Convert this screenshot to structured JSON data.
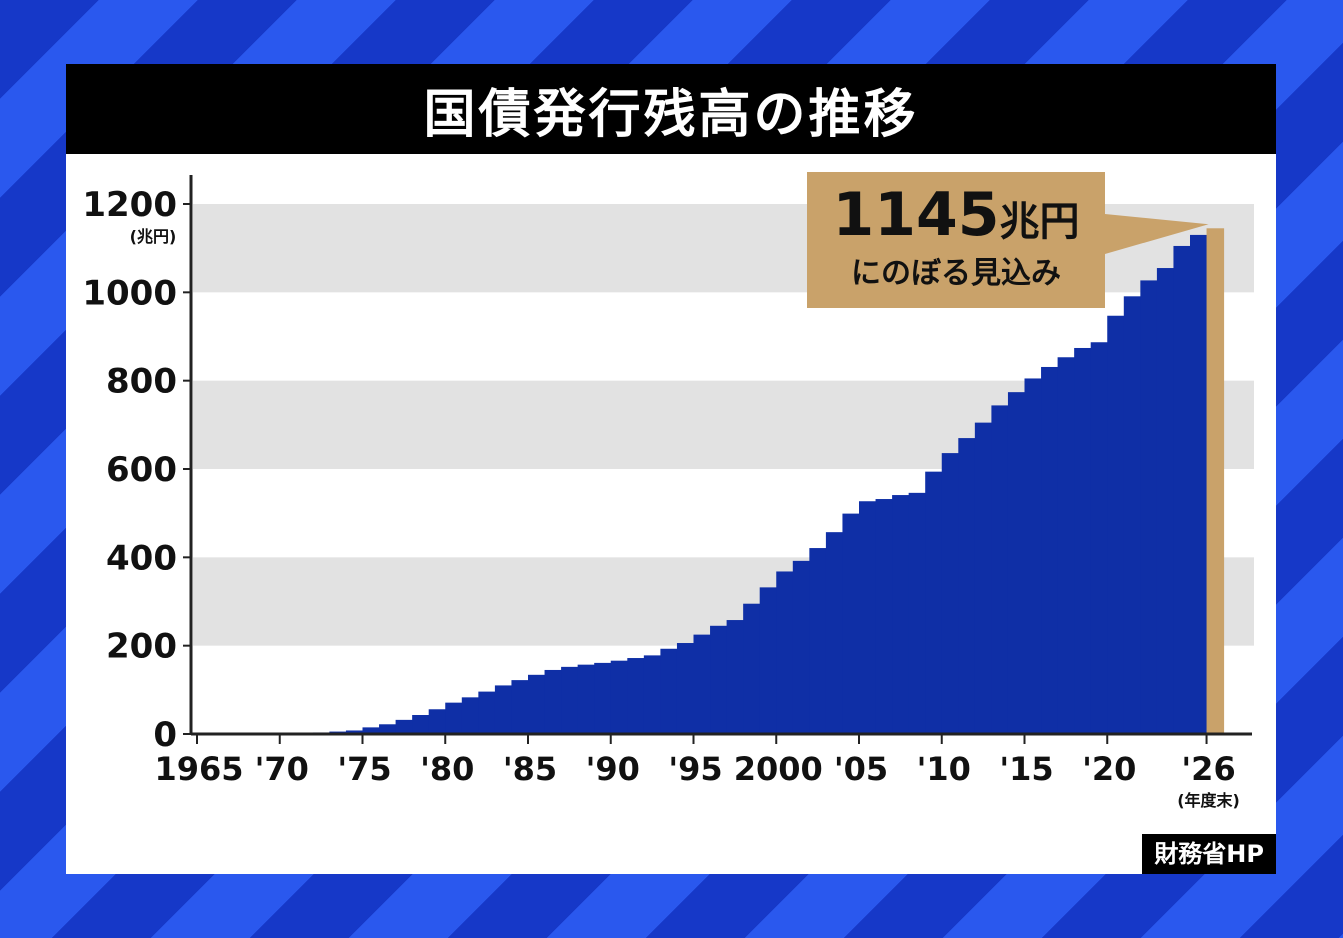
{
  "title": "国債発行残高の推移",
  "source": "財務省HP",
  "colors": {
    "bar": "#0f2fa6",
    "highlight": "#c9a26a",
    "band": "#e2e2e2",
    "title_bg": "#000000"
  },
  "callout": {
    "value": "1145",
    "unit": "兆円",
    "note": "にのぼる見込み"
  },
  "chart_data": {
    "type": "bar",
    "title": "国債発行残高の推移",
    "y_unit_label": "(兆円)",
    "x_unit_label": "(年度末)",
    "ylim": [
      0,
      1200
    ],
    "y_ticks": [
      0,
      200,
      400,
      600,
      800,
      1000,
      1200
    ],
    "x_ticks": [
      {
        "year": 1965,
        "label": "1965"
      },
      {
        "year": 1970,
        "label": "'70"
      },
      {
        "year": 1975,
        "label": "'75"
      },
      {
        "year": 1980,
        "label": "'80"
      },
      {
        "year": 1985,
        "label": "'85"
      },
      {
        "year": 1990,
        "label": "'90"
      },
      {
        "year": 1995,
        "label": "'95"
      },
      {
        "year": 2000,
        "label": "2000"
      },
      {
        "year": 2005,
        "label": "'05"
      },
      {
        "year": 2010,
        "label": "'10"
      },
      {
        "year": 2015,
        "label": "'15"
      },
      {
        "year": 2020,
        "label": "'20"
      },
      {
        "year": 2026,
        "label": "'26"
      }
    ],
    "grid_bands": [
      [
        200,
        400
      ],
      [
        600,
        800
      ],
      [
        1000,
        1200
      ]
    ],
    "highlight_year": 2026,
    "series": [
      {
        "years": [
          1965,
          1966,
          1967,
          1968,
          1969,
          1970,
          1971,
          1972,
          1973,
          1974,
          1975,
          1976,
          1977,
          1978,
          1979,
          1980,
          1981,
          1982,
          1983,
          1984,
          1985,
          1986,
          1987,
          1988,
          1989,
          1990,
          1991,
          1992,
          1993,
          1994,
          1995,
          1996,
          1997,
          1998,
          1999,
          2000,
          2001,
          2002,
          2003,
          2004,
          2005,
          2006,
          2007,
          2008,
          2009,
          2010,
          2011,
          2012,
          2013,
          2014,
          2015,
          2016,
          2017,
          2018,
          2019,
          2020,
          2021,
          2022,
          2023,
          2024,
          2025,
          2026
        ],
        "values": [
          0,
          0.3,
          0.6,
          1,
          1.6,
          2,
          2.5,
          3.5,
          5.5,
          8,
          15,
          22,
          32,
          43,
          56,
          71,
          83,
          96,
          110,
          122,
          134,
          145,
          152,
          157,
          161,
          166,
          172,
          178,
          193,
          206,
          225,
          245,
          258,
          295,
          332,
          368,
          392,
          421,
          457,
          499,
          527,
          532,
          541,
          546,
          594,
          636,
          670,
          705,
          744,
          774,
          805,
          831,
          853,
          874,
          887,
          947,
          991,
          1027,
          1055,
          1105,
          1130,
          1145
        ]
      }
    ]
  }
}
